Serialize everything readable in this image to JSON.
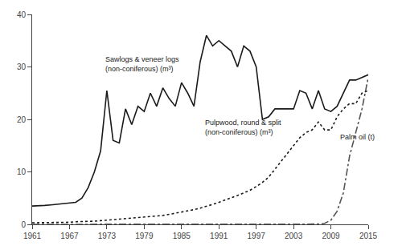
{
  "chart_data": {
    "type": "line",
    "x": [
      1961,
      1962,
      1963,
      1964,
      1965,
      1966,
      1967,
      1968,
      1969,
      1970,
      1971,
      1972,
      1973,
      1974,
      1975,
      1976,
      1977,
      1978,
      1979,
      1980,
      1981,
      1982,
      1983,
      1984,
      1985,
      1986,
      1987,
      1988,
      1989,
      1990,
      1991,
      1992,
      1993,
      1994,
      1995,
      1996,
      1997,
      1998,
      1999,
      2000,
      2001,
      2002,
      2003,
      2004,
      2005,
      2006,
      2007,
      2008,
      2009,
      2010,
      2011,
      2012,
      2013,
      2014,
      2015
    ],
    "series": [
      {
        "color": "#1a1a1a",
        "line_style": "solid",
        "values": [
          3.5,
          3.5,
          3.6,
          3.7,
          3.8,
          3.9,
          4.0,
          4.2,
          5.0,
          7.0,
          10.0,
          14.0,
          25.5,
          16.0,
          15.5,
          22.0,
          19.0,
          22.5,
          21.5,
          25.0,
          22.5,
          26.0,
          24.0,
          22.5,
          27.0,
          25.0,
          22.5,
          31.0,
          36.0,
          34.0,
          35.0,
          34.0,
          33.0,
          30.0,
          34.0,
          33.0,
          30.0,
          20.0,
          20.5,
          22.0,
          22.0,
          22.0,
          22.0,
          25.5,
          25.0,
          22.0,
          25.5,
          22.0,
          21.5,
          22.5,
          25.0,
          27.5,
          27.5,
          28.0,
          28.5
        ]
      },
      {
        "color": "#1a1a1a",
        "line_style": "dot",
        "values": [
          0.3,
          0.3,
          0.3,
          0.3,
          0.4,
          0.4,
          0.4,
          0.5,
          0.5,
          0.6,
          0.6,
          0.7,
          0.8,
          0.8,
          0.9,
          1.0,
          1.1,
          1.2,
          1.3,
          1.5,
          1.6,
          1.7,
          1.9,
          2.1,
          2.3,
          2.5,
          2.8,
          3.1,
          3.4,
          3.8,
          4.2,
          4.6,
          5.0,
          5.5,
          6.0,
          6.5,
          7.2,
          8.0,
          9.0,
          10.5,
          12.0,
          13.5,
          15.0,
          16.5,
          17.5,
          18.0,
          19.5,
          18.0,
          18.0,
          20.5,
          22.0,
          23.0,
          23.0,
          25.0,
          25.5
        ]
      },
      {
        "color": "#555555",
        "line_style": "dashdot",
        "values": [
          0.0,
          0.0,
          0.0,
          0.0,
          0.0,
          0.0,
          0.0,
          0.0,
          0.0,
          0.0,
          0.0,
          0.0,
          0.0,
          0.0,
          0.0,
          0.0,
          0.0,
          0.0,
          0.0,
          0.0,
          0.0,
          0.0,
          0.0,
          0.0,
          0.0,
          0.0,
          0.0,
          0.0,
          0.0,
          0.0,
          0.0,
          0.0,
          0.0,
          0.0,
          0.0,
          0.0,
          0.0,
          0.0,
          0.0,
          0.0,
          0.0,
          0.0,
          0.0,
          0.0,
          0.0,
          0.0,
          0.05,
          0.2,
          0.8,
          2.5,
          6.0,
          13.0,
          17.5,
          22.0,
          28.0
        ]
      }
    ],
    "annotations": [
      {
        "text": "Sawlogs & veneer logs\n(non-coniferous) (m³)",
        "x": 1972.5,
        "y": 28.5
      },
      {
        "text": "Pulpwood, round & split\n(non-coniferous) (m³)",
        "x": 1988.5,
        "y": 16.5
      },
      {
        "text": "Palm oil (t)",
        "x": 2010.2,
        "y": 15.5
      }
    ],
    "xlim": [
      1961,
      2015
    ],
    "ylim": [
      0,
      40
    ],
    "xticks": [
      1961,
      1967,
      1973,
      1979,
      1985,
      1991,
      1997,
      2003,
      2009,
      2015
    ],
    "yticks": [
      0,
      10,
      20,
      30,
      40
    ],
    "grid": false
  }
}
